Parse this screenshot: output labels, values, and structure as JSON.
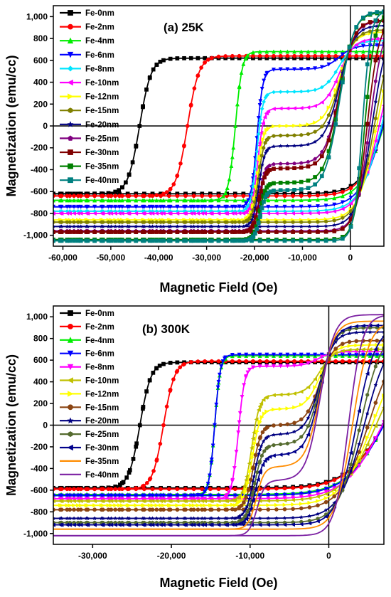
{
  "chart_data": [
    {
      "type": "line",
      "panel_label": "(a)  25K",
      "xlabel": "Magnetic Field (Oe)",
      "ylabel": "Magnetization (emu/cc)",
      "xlim": [
        -62000,
        7000
      ],
      "ylim": [
        -1100,
        1100
      ],
      "xticks": [
        -60000,
        -50000,
        -40000,
        -30000,
        -20000,
        -10000,
        0
      ],
      "xtick_labels": [
        "-60,000",
        "-50,000",
        "-40,000",
        "-30,000",
        "-20,000",
        "-10,000",
        "0"
      ],
      "yticks": [
        -1000,
        -800,
        -600,
        -400,
        -200,
        0,
        200,
        400,
        600,
        800,
        1000
      ],
      "ytick_labels": [
        "-1,000",
        "-800",
        "-600",
        "-400",
        "-200",
        "0",
        "200",
        "400",
        "600",
        "800",
        "1,000"
      ],
      "legend_position": "top-left",
      "series": [
        {
          "name": "Fe-0nm",
          "color": "#000000",
          "marker": "square",
          "Ms": 620,
          "Hc": -44000,
          "w": 1200,
          "kink": 0,
          "close": 7000
        },
        {
          "name": "Fe-2nm",
          "color": "#ff0000",
          "marker": "circle",
          "Ms": 640,
          "Hc": -34000,
          "w": 1200,
          "kink": 0,
          "close": 7000
        },
        {
          "name": "Fe-4nm",
          "color": "#00ee00",
          "marker": "triangle-up",
          "Ms": 680,
          "Hc": -24000,
          "w": 700,
          "kink": 0,
          "close": 7000
        },
        {
          "name": "Fe-6nm",
          "color": "#0000ff",
          "marker": "triangle-down",
          "Ms": 740,
          "Hc": -19500,
          "w": 600,
          "kink": 0.15,
          "close": 6800
        },
        {
          "name": "Fe-8nm",
          "color": "#00e5ff",
          "marker": "diamond",
          "Ms": 780,
          "Hc": -19500,
          "w": 600,
          "kink": 0.3,
          "close": 6500
        },
        {
          "name": "Fe-10nm",
          "color": "#ff00ff",
          "marker": "triangle-left",
          "Ms": 800,
          "Hc": -19300,
          "w": 600,
          "kink": 0.4,
          "close": 6000
        },
        {
          "name": "Fe-12nm",
          "color": "#ffff00",
          "marker": "triangle-right",
          "Ms": 860,
          "Hc": -19300,
          "w": 600,
          "kink": 0.5,
          "close": 5500
        },
        {
          "name": "Fe-15nm",
          "color": "#808000",
          "marker": "hexagon",
          "Ms": 880,
          "Hc": -19200,
          "w": 600,
          "kink": 0.55,
          "close": 5000
        },
        {
          "name": "Fe-20nm",
          "color": "#000080",
          "marker": "star",
          "Ms": 920,
          "Hc": -19100,
          "w": 600,
          "kink": 0.6,
          "close": 4500
        },
        {
          "name": "Fe-25nm",
          "color": "#800080",
          "marker": "pentagon",
          "Ms": 960,
          "Hc": -19000,
          "w": 600,
          "kink": 0.68,
          "close": 4000
        },
        {
          "name": "Fe-30nm",
          "color": "#800000",
          "marker": "square",
          "Ms": 970,
          "Hc": -19000,
          "w": 600,
          "kink": 0.7,
          "close": 3500
        },
        {
          "name": "Fe-35nm",
          "color": "#008000",
          "marker": "square",
          "Ms": 1040,
          "Hc": -18900,
          "w": 600,
          "kink": 0.75,
          "close": 3000
        },
        {
          "name": "Fe-40nm",
          "color": "#008080",
          "marker": "square",
          "Ms": 1050,
          "Hc": -18800,
          "w": 600,
          "kink": 0.78,
          "close": 2500
        }
      ]
    },
    {
      "type": "line",
      "panel_label": "(b)  300K",
      "xlabel": "Magnetic Field (Oe)",
      "ylabel": "Magnetization (emu/cc)",
      "xlim": [
        -35000,
        7000
      ],
      "ylim": [
        -1100,
        1100
      ],
      "xticks": [
        -30000,
        -20000,
        -10000,
        0
      ],
      "xtick_labels": [
        "-30,000",
        "-20,000",
        "-10,000",
        "0"
      ],
      "yticks": [
        -1000,
        -800,
        -600,
        -400,
        -200,
        0,
        200,
        400,
        600,
        800,
        1000
      ],
      "ytick_labels": [
        "-1,000",
        "-800",
        "-600",
        "-400",
        "-200",
        "0",
        "200",
        "400",
        "600",
        "800",
        "1,000"
      ],
      "legend_position": "top-left",
      "series": [
        {
          "name": "Fe-0nm",
          "color": "#000000",
          "marker": "square",
          "Ms": 580,
          "Hc": -24000,
          "w": 700,
          "kink": 0,
          "close": 7000
        },
        {
          "name": "Fe-2nm",
          "color": "#ff0000",
          "marker": "circle",
          "Ms": 590,
          "Hc": -21000,
          "w": 700,
          "kink": 0,
          "close": 7000
        },
        {
          "name": "Fe-4nm",
          "color": "#00ee00",
          "marker": "triangle-up",
          "Ms": 640,
          "Hc": -14500,
          "w": 350,
          "kink": 0,
          "close": 7000
        },
        {
          "name": "Fe-6nm",
          "color": "#0000ff",
          "marker": "triangle-down",
          "Ms": 650,
          "Hc": -14500,
          "w": 350,
          "kink": 0,
          "close": 7000
        },
        {
          "name": "Fe-8nm",
          "color": "#ff00ff",
          "marker": "triangle-down",
          "Ms": 680,
          "Hc": -11500,
          "w": 400,
          "kink": 0.1,
          "close": 6800
        },
        {
          "name": "Fe-10nm",
          "color": "#c0c000",
          "marker": "triangle-left",
          "Ms": 700,
          "Hc": -9800,
          "w": 500,
          "kink": 0.3,
          "close": 6000
        },
        {
          "name": "Fe-12nm",
          "color": "#ffff00",
          "marker": "triangle-right",
          "Ms": 740,
          "Hc": -9700,
          "w": 500,
          "kink": 0.4,
          "close": 5500
        },
        {
          "name": "Fe-15nm",
          "color": "#8b4513",
          "marker": "circle",
          "Ms": 780,
          "Hc": -9600,
          "w": 500,
          "kink": 0.5,
          "close": 5000
        },
        {
          "name": "Fe-20nm",
          "color": "#000080",
          "marker": "star",
          "Ms": 860,
          "Hc": -9500,
          "w": 500,
          "kink": 0.55,
          "close": 4500
        },
        {
          "name": "Fe-25nm",
          "color": "#556b2f",
          "marker": "hexagon",
          "Ms": 900,
          "Hc": -9400,
          "w": 500,
          "kink": 0.6,
          "close": 4000
        },
        {
          "name": "Fe-30nm",
          "color": "#00008b",
          "marker": "triangle-left",
          "Ms": 920,
          "Hc": -9300,
          "w": 500,
          "kink": 0.65,
          "close": 3500
        },
        {
          "name": "Fe-35nm",
          "color": "#ff8c00",
          "marker": "none",
          "Ms": 960,
          "Hc": -9200,
          "w": 500,
          "kink": 0.7,
          "close": 3000
        },
        {
          "name": "Fe-40nm",
          "color": "#7b1fa2",
          "marker": "none",
          "Ms": 1020,
          "Hc": -9100,
          "w": 500,
          "kink": 0.75,
          "close": 2500
        }
      ]
    }
  ]
}
